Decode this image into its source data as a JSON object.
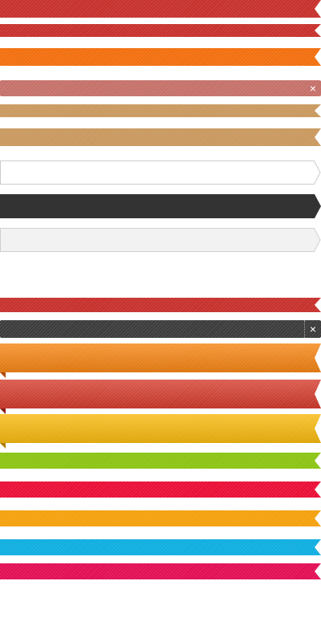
{
  "ribbons": [
    {
      "color": "#c7312d",
      "style": "notch"
    },
    {
      "color": "#c7312d",
      "style": "notch"
    },
    {
      "color": "#f26f0f",
      "style": "notch"
    },
    {
      "color": "#c5716a",
      "style": "plain",
      "close_icon": "close-icon",
      "close_label": "×"
    },
    {
      "color": "#c9995f",
      "style": "notch"
    },
    {
      "color": "#c9995f",
      "style": "notch"
    },
    {
      "color": "#ffffff",
      "style": "arrow-outline"
    },
    {
      "color": "#333333",
      "style": "arrow"
    },
    {
      "color": "#f2f2f2",
      "style": "arrow-outline"
    },
    {
      "color": "#c7312d",
      "style": "notch"
    },
    {
      "color": "#3c3c3c",
      "style": "plain",
      "close_icon": "close-icon",
      "close_label": "×"
    },
    {
      "color": "#f5820f",
      "style": "notch-fold",
      "fold_color": "#b34a05"
    },
    {
      "color": "#d4392a",
      "style": "notch-fold",
      "fold_color": "#8a1d14"
    },
    {
      "color": "#f7b80a",
      "style": "notch-fold",
      "fold_color": "#b07d05"
    },
    {
      "color": "#8cc414",
      "style": "notch"
    },
    {
      "color": "#ea0f37",
      "style": "notch"
    },
    {
      "color": "#f4a10d",
      "style": "notch"
    },
    {
      "color": "#0faee0",
      "style": "notch"
    },
    {
      "color": "#e20f55",
      "style": "notch"
    }
  ]
}
